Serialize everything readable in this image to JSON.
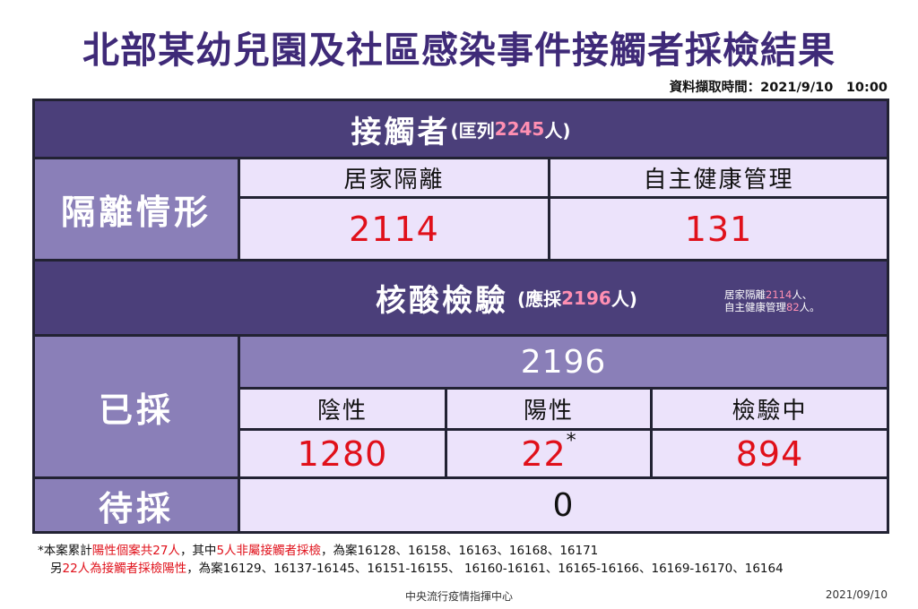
{
  "title": "北部某幼兒園及社區感染事件接觸者採檢結果",
  "timestamp": "資料擷取時間：2021/9/10　10:00",
  "contacts": {
    "label": "接觸者",
    "paren_open": "(匡列",
    "count": "2245",
    "paren_close": "人)"
  },
  "isolation": {
    "label": "隔離情形",
    "home_quarantine_label": "居家隔離",
    "home_quarantine_value": "2114",
    "self_health_label": "自主健康管理",
    "self_health_value": "131"
  },
  "testing": {
    "label": "核酸檢驗",
    "paren_open": "(應採",
    "count": "2196",
    "paren_close": "人)",
    "note_line1_prefix": "居家隔離",
    "note_line1_value": "2114",
    "note_line1_suffix": "人、",
    "note_line2_prefix": "自主健康管理",
    "note_line2_value": "82",
    "note_line2_suffix": "人。"
  },
  "sampled": {
    "label": "已採",
    "total": "2196",
    "negative_label": "陰性",
    "negative_value": "1280",
    "positive_label": "陽性",
    "positive_value": "22",
    "positive_mark": "*",
    "pending_label": "檢驗中",
    "pending_value": "894"
  },
  "to_sample": {
    "label": "待採",
    "value": "0"
  },
  "footnotes": {
    "line1_a": "*本案累計",
    "line1_b": "陽性個案共27人",
    "line1_c": "，其中",
    "line1_d": "5人非屬接觸者採檢",
    "line1_e": "，為案16128、16158、16163、16168、16171",
    "line2_a": "另",
    "line2_b": "22人為接觸者採檢陽性",
    "line2_c": "，為案16129、16137-16145、16151-16155、 16160-16161、16165-16166、16169-16170、16164"
  },
  "footer": {
    "org": "中央流行疫情指揮中心",
    "date": "2021/09/10"
  }
}
